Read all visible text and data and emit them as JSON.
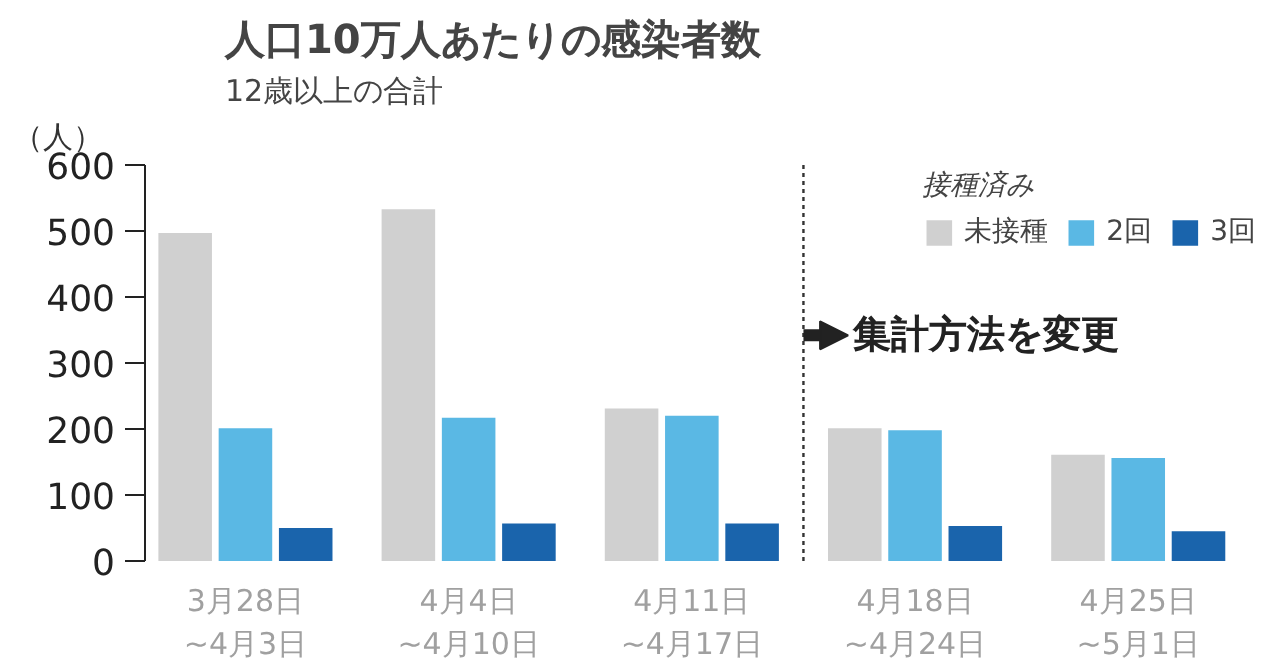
{
  "chart_data": {
    "type": "bar",
    "title": "人口10万人あたりの感染者数",
    "subtitle": "12歳以上の合計",
    "ylabel": "（人）",
    "legend_title": "接種済み",
    "categories": [
      "3月28日\n~4月3日",
      "4月4日\n~4月10日",
      "4月11日\n~4月17日",
      "4月18日\n~4月24日",
      "4月25日\n~5月1日"
    ],
    "series": [
      {
        "name": "未接種",
        "color": "#d0d0d0",
        "values": [
          497,
          533,
          231,
          201,
          161
        ]
      },
      {
        "name": "2回",
        "color": "#5ab8e4",
        "values": [
          201,
          217,
          220,
          198,
          156
        ]
      },
      {
        "name": "3回",
        "color": "#1a64ac",
        "values": [
          50,
          57,
          57,
          53,
          45
        ]
      }
    ],
    "ylim": [
      0,
      600
    ],
    "yticks": [
      0,
      100,
      200,
      300,
      400,
      500,
      600
    ],
    "grid": false,
    "legend": "top right",
    "annotations": [
      "集計方法を変更"
    ]
  }
}
